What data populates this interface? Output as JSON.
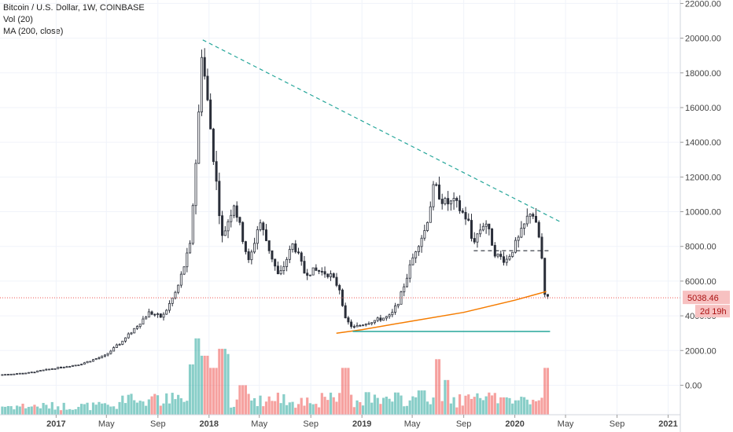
{
  "legend": {
    "symbol": "Bitcoin / U.S. Dollar, 1W, COINBASE",
    "volume": "Vol (20)",
    "ma": "MA (200, close)"
  },
  "price_label": "5038.46",
  "countdown_label": "2d 19h",
  "colors": {
    "candle_body": "#2a2e39",
    "volume_up": "#26a69a",
    "volume_down": "#ef5350",
    "ma_line": "#f57c00",
    "trendline": "#26a69a",
    "support_line": "#26a69a",
    "price_tag": "#f7c1c1",
    "price_tag_text": "#c62828"
  },
  "chart_data": {
    "type": "candlestick",
    "title": "Bitcoin / U.S. Dollar, 1W, COINBASE",
    "y_ticks": [
      "22000.00",
      "20000.00",
      "18000.00",
      "16000.00",
      "14000.00",
      "12000.00",
      "10000.00",
      "8000.00",
      "6000.00",
      "4000.00",
      "2000.00",
      "0.00"
    ],
    "y_tick_values": [
      22000,
      20000,
      18000,
      16000,
      14000,
      12000,
      10000,
      8000,
      6000,
      4000,
      2000,
      0
    ],
    "ylim": [
      -1700,
      22200
    ],
    "x_ticks": [
      "2017",
      "May",
      "Sep",
      "2018",
      "May",
      "Sep",
      "2019",
      "May",
      "Sep",
      "2020",
      "May",
      "Sep",
      "2021"
    ],
    "x_tick_dates": [
      "2017-01-01",
      "2017-05-01",
      "2017-09-01",
      "2018-01-01",
      "2018-05-01",
      "2018-09-01",
      "2019-01-01",
      "2019-05-01",
      "2019-09-01",
      "2020-01-01",
      "2020-05-01",
      "2020-09-01",
      "2021-01-01"
    ],
    "xlim": [
      "2016-08-20",
      "2021-01-30"
    ],
    "last_price": 5038.46,
    "price_path": {
      "dates": [
        "2016-08-22",
        "2016-11-01",
        "2017-01-01",
        "2017-03-01",
        "2017-05-01",
        "2017-06-15",
        "2017-08-15",
        "2017-09-15",
        "2017-10-20",
        "2017-11-20",
        "2017-12-10",
        "2017-12-17",
        "2018-01-07",
        "2018-02-05",
        "2018-03-05",
        "2018-04-10",
        "2018-05-05",
        "2018-06-20",
        "2018-07-25",
        "2018-08-20",
        "2018-09-20",
        "2018-10-20",
        "2018-11-14",
        "2018-11-25",
        "2018-12-15",
        "2019-01-15",
        "2019-02-15",
        "2019-03-15",
        "2019-04-05",
        "2019-05-15",
        "2019-06-05",
        "2019-06-26",
        "2019-07-20",
        "2019-08-15",
        "2019-09-15",
        "2019-09-25",
        "2019-10-26",
        "2019-11-20",
        "2019-12-15",
        "2020-01-15",
        "2020-02-13",
        "2020-03-01",
        "2020-03-08",
        "2020-03-12",
        "2020-03-16"
      ],
      "values": [
        600,
        720,
        980,
        1200,
        1700,
        2600,
        4200,
        3900,
        5500,
        8000,
        15000,
        19500,
        15000,
        8500,
        10500,
        7000,
        9500,
        6200,
        8200,
        6500,
        6600,
        6400,
        5500,
        3800,
        3300,
        3600,
        3800,
        4000,
        5000,
        8000,
        9000,
        11500,
        10500,
        10500,
        9500,
        8200,
        9500,
        7500,
        7200,
        8500,
        10200,
        8600,
        8000,
        5000,
        5100
      ]
    },
    "ma_200": {
      "dates": [
        "2018-11-01",
        "2019-01-01",
        "2019-05-01",
        "2019-09-01",
        "2020-01-01",
        "2020-03-16"
      ],
      "values": [
        3000,
        3200,
        3700,
        4200,
        4900,
        5400
      ]
    },
    "trendline": {
      "dates": [
        "2017-12-17",
        "2020-04-20"
      ],
      "values": [
        19900,
        9400
      ]
    },
    "support_line": {
      "dates": [
        "2018-12-10",
        "2020-03-25"
      ],
      "values": [
        3100,
        3100
      ]
    },
    "resistance_dashed": {
      "dates": [
        "2019-09-25",
        "2020-03-25"
      ],
      "values": [
        7750,
        7750
      ]
    },
    "volume_series": {
      "note_units": "relative volume on same price axis",
      "dates": [
        "2017-06-01",
        "2017-08-20",
        "2017-11-15",
        "2017-12-01",
        "2017-12-17",
        "2018-01-07",
        "2018-01-28",
        "2018-02-10",
        "2018-03-20",
        "2018-11-20",
        "2019-01-10",
        "2019-05-20",
        "2019-06-26",
        "2019-07-20",
        "2019-12-01",
        "2020-03-12"
      ],
      "values": [
        1100,
        700,
        2900,
        4400,
        3400,
        2700,
        3800,
        3500,
        1700,
        2700,
        1300,
        1400,
        3200,
        2000,
        1000,
        2700
      ]
    }
  }
}
